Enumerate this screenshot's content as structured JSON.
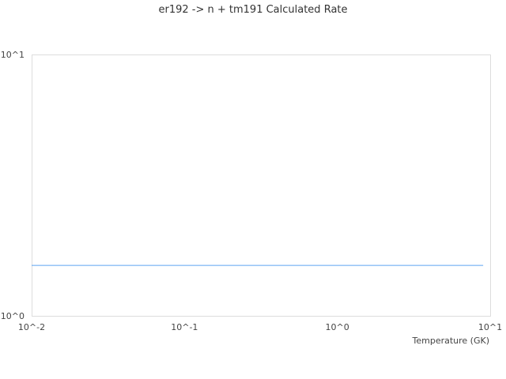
{
  "chart_data": {
    "type": "line",
    "title": "er192 -> n + tm191 Calculated Rate",
    "xlabel": "Temperature (GK)",
    "ylabel": "",
    "xscale": "log",
    "yscale": "log",
    "xlim": [
      0.01,
      10
    ],
    "ylim": [
      1,
      10
    ],
    "xticks": [
      "10^-2",
      "10^-1",
      "10^0",
      "10^1"
    ],
    "yticks": [
      "10^0",
      "10^1"
    ],
    "grid": false,
    "series": [
      {
        "color": "#5ea3f0",
        "x": [
          0.01,
          0.1,
          1,
          9
        ],
        "y": [
          1.56,
          1.56,
          1.56,
          1.56
        ]
      }
    ]
  }
}
